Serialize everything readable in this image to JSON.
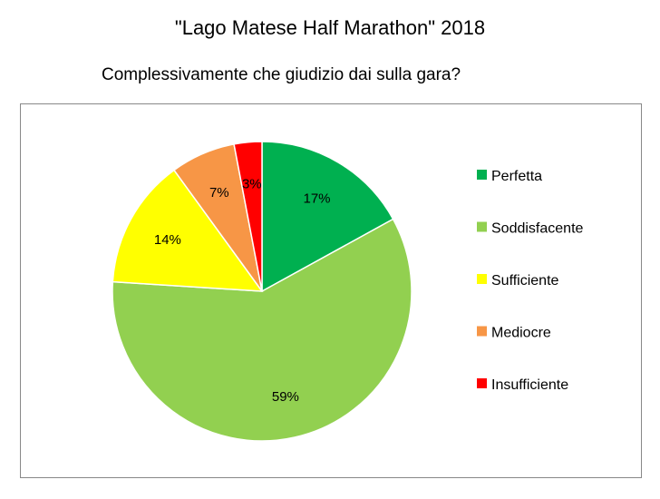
{
  "title": "\"Lago Matese Half Marathon\" 2018",
  "subtitle": "Complessivamente che giudizio dai sulla gara?",
  "chart_data": {
    "type": "pie",
    "title": "\"Lago Matese Half Marathon\" 2018",
    "subtitle": "Complessivamente che giudizio dai sulla gara?",
    "legend_position": "right",
    "categories": [
      "Perfetta",
      "Soddisfacente",
      "Sufficiente",
      "Mediocre",
      "Insufficiente"
    ],
    "values": [
      17,
      59,
      14,
      7,
      3
    ],
    "value_labels": [
      "17%",
      "59%",
      "14%",
      "7%",
      "3%"
    ],
    "colors": [
      "#00b050",
      "#92d050",
      "#ffff00",
      "#f79646",
      "#ff0000"
    ]
  }
}
